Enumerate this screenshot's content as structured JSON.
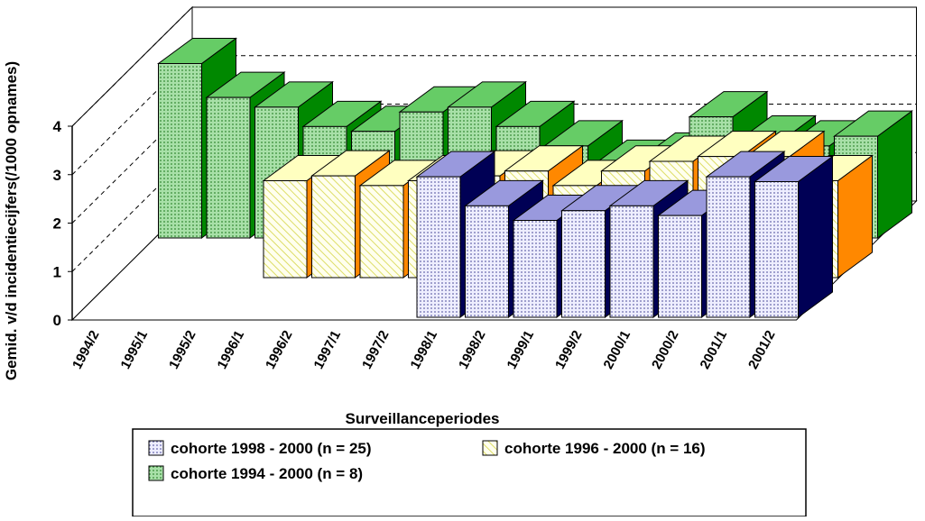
{
  "chart_data": {
    "type": "bar3d",
    "ylabel": "Gemid. v/d incidentiecijfers(/1000 opnames)",
    "xlabel": "Surveillanceperiodes",
    "categories": [
      "1994/2",
      "1995/1",
      "1995/2",
      "1996/1",
      "1996/2",
      "1997/1",
      "1997/2",
      "1998/1",
      "1998/2",
      "1999/1",
      "1999/2",
      "2000/1",
      "2000/2",
      "2001/1",
      "2001/2"
    ],
    "ylim": [
      0,
      4
    ],
    "yticks": [
      0,
      1,
      2,
      3,
      4
    ],
    "grid": true,
    "series": [
      {
        "name": "cohorte 1998 - 2000 (n = 25)",
        "color": "#9999dd",
        "values": [
          null,
          null,
          null,
          null,
          null,
          null,
          null,
          2.9,
          2.3,
          2.0,
          2.2,
          2.3,
          2.1,
          2.9,
          2.8
        ]
      },
      {
        "name": "cohorte 1996 - 2000 (n = 16)",
        "color": "#ffffc0",
        "values": [
          null,
          null,
          null,
          2.0,
          2.1,
          1.9,
          2.0,
          2.1,
          2.2,
          1.9,
          2.2,
          2.4,
          2.5,
          2.5,
          2.0
        ]
      },
      {
        "name": "cohorte 1994 - 2000 (n = 8)",
        "color": "#66cc66",
        "values": [
          3.6,
          2.9,
          2.7,
          2.3,
          2.2,
          2.6,
          2.7,
          2.3,
          1.9,
          1.5,
          1.65,
          2.5,
          2.0,
          1.9,
          2.1
        ]
      }
    ]
  }
}
